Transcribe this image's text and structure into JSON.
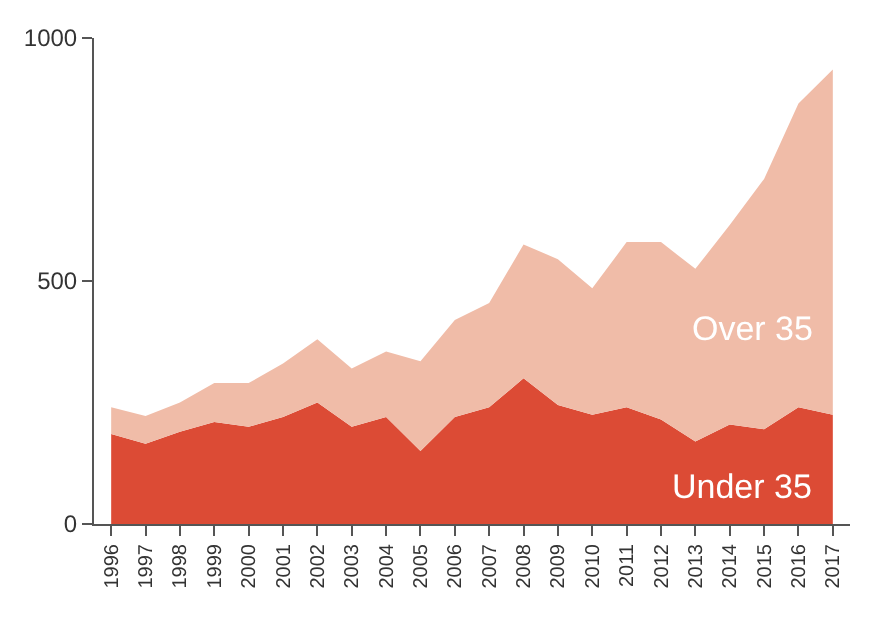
{
  "chart_data": {
    "type": "area",
    "stacked": true,
    "categories": [
      "1996",
      "1997",
      "1998",
      "1999",
      "2000",
      "2001",
      "2002",
      "2003",
      "2004",
      "2005",
      "2006",
      "2007",
      "2008",
      "2009",
      "2010",
      "2011",
      "2012",
      "2013",
      "2014",
      "2015",
      "2016",
      "2017"
    ],
    "series": [
      {
        "name": "Under 35",
        "color": "#dc4b35",
        "values": [
          185,
          165,
          190,
          210,
          200,
          220,
          250,
          200,
          220,
          150,
          220,
          240,
          300,
          245,
          225,
          240,
          215,
          170,
          205,
          195,
          240,
          225
        ]
      },
      {
        "name": "Over 35",
        "color": "#f0bca8",
        "values": [
          55,
          57,
          60,
          80,
          90,
          110,
          130,
          120,
          135,
          185,
          200,
          215,
          275,
          300,
          260,
          340,
          365,
          355,
          410,
          515,
          625,
          710
        ]
      }
    ],
    "ylim": [
      0,
      1000
    ],
    "yticks": [
      0,
      500,
      1000
    ],
    "legend": false
  }
}
